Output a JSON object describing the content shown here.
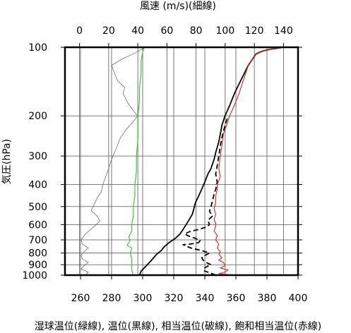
{
  "chart_data": {
    "type": "line",
    "title_top": "風速 (m/s)(細線)",
    "ylabel": "気圧(hPa)",
    "xlabel_bottom": "湿球温位(緑線), 温位(黒線), 相当温位(破線), 飽和相当温位(赤線)",
    "y_scale": "log",
    "ylim": [
      1000,
      100
    ],
    "y_ticks": [
      100,
      200,
      300,
      400,
      500,
      600,
      700,
      800,
      900,
      1000
    ],
    "top_axis": {
      "range": [
        -10,
        150
      ],
      "ticks": [
        0,
        20,
        40,
        60,
        80,
        100,
        120,
        140
      ]
    },
    "bottom_axis": {
      "range": [
        250,
        400
      ],
      "ticks": [
        260,
        280,
        300,
        320,
        340,
        360,
        380,
        400
      ]
    },
    "colors": {
      "wind": "#707070",
      "wet_bulb": "#22cc22",
      "potential": "#000000",
      "equivalent": "#000000",
      "saturated": "#dd2222"
    },
    "series": [
      {
        "key": "wind",
        "axis": "top",
        "style": "thin",
        "points": [
          [
            4,
            1000
          ],
          [
            6,
            970
          ],
          [
            1,
            940
          ],
          [
            3,
            910
          ],
          [
            6,
            880
          ],
          [
            2,
            850
          ],
          [
            1,
            820
          ],
          [
            3,
            790
          ],
          [
            6,
            760
          ],
          [
            2,
            730
          ],
          [
            1,
            700
          ],
          [
            4,
            660
          ],
          [
            9,
            620
          ],
          [
            14,
            580
          ],
          [
            12,
            550
          ],
          [
            8,
            520
          ],
          [
            10,
            490
          ],
          [
            12,
            460
          ],
          [
            15,
            430
          ],
          [
            16,
            400
          ],
          [
            18,
            370
          ],
          [
            20,
            340
          ],
          [
            22,
            310
          ],
          [
            25,
            280
          ],
          [
            28,
            250
          ],
          [
            32,
            230
          ],
          [
            36,
            215
          ],
          [
            40,
            200
          ],
          [
            37,
            190
          ],
          [
            33,
            175
          ],
          [
            30,
            160
          ],
          [
            31,
            150
          ],
          [
            26,
            140
          ],
          [
            24,
            130
          ],
          [
            22,
            120
          ],
          [
            30,
            112
          ],
          [
            38,
            106
          ],
          [
            45,
            100
          ]
        ]
      },
      {
        "key": "wet_bulb",
        "axis": "bottom",
        "style": "solid",
        "points": [
          [
            294,
            1000
          ],
          [
            293,
            950
          ],
          [
            293,
            900
          ],
          [
            293,
            850
          ],
          [
            292,
            800
          ],
          [
            293,
            760
          ],
          [
            290,
            740
          ],
          [
            292,
            700
          ],
          [
            291,
            680
          ],
          [
            293,
            640
          ],
          [
            293,
            600
          ],
          [
            294,
            550
          ],
          [
            294,
            500
          ],
          [
            295,
            450
          ],
          [
            295,
            400
          ],
          [
            296,
            350
          ],
          [
            296,
            300
          ],
          [
            297,
            250
          ],
          [
            297,
            200
          ],
          [
            298,
            170
          ],
          [
            298,
            150
          ],
          [
            299,
            130
          ],
          [
            299,
            115
          ],
          [
            300,
            105
          ],
          [
            301,
            100
          ]
        ]
      },
      {
        "key": "potential",
        "axis": "bottom",
        "style": "solid",
        "points": [
          [
            298,
            1000
          ],
          [
            299,
            960
          ],
          [
            301,
            930
          ],
          [
            303,
            900
          ],
          [
            305,
            870
          ],
          [
            307,
            840
          ],
          [
            309,
            810
          ],
          [
            312,
            780
          ],
          [
            314,
            750
          ],
          [
            317,
            720
          ],
          [
            321,
            690
          ],
          [
            324,
            660
          ],
          [
            326,
            630
          ],
          [
            328,
            600
          ],
          [
            330,
            570
          ],
          [
            332,
            540
          ],
          [
            333,
            510
          ],
          [
            334,
            480
          ],
          [
            336,
            450
          ],
          [
            338,
            420
          ],
          [
            340,
            390
          ],
          [
            342,
            360
          ],
          [
            344,
            340
          ],
          [
            346,
            310
          ],
          [
            347,
            290
          ],
          [
            349,
            260
          ],
          [
            350,
            240
          ],
          [
            351,
            220
          ],
          [
            353,
            200
          ],
          [
            356,
            180
          ],
          [
            359,
            160
          ],
          [
            362,
            145
          ],
          [
            365,
            132
          ],
          [
            368,
            120
          ],
          [
            371,
            112
          ],
          [
            373,
            107
          ],
          [
            377,
            104
          ],
          [
            382,
            102
          ],
          [
            387,
            101
          ],
          [
            390,
            100
          ]
        ]
      },
      {
        "key": "equivalent",
        "axis": "bottom",
        "style": "dashed",
        "points": [
          [
            347,
            1000
          ],
          [
            344,
            980
          ],
          [
            340,
            960
          ],
          [
            339,
            940
          ],
          [
            341,
            920
          ],
          [
            344,
            900
          ],
          [
            341,
            880
          ],
          [
            339,
            860
          ],
          [
            338,
            840
          ],
          [
            340,
            820
          ],
          [
            343,
            800
          ],
          [
            338,
            780
          ],
          [
            331,
            760
          ],
          [
            328,
            745
          ],
          [
            326,
            735
          ],
          [
            331,
            730
          ],
          [
            336,
            720
          ],
          [
            337,
            705
          ],
          [
            334,
            690
          ],
          [
            330,
            675
          ],
          [
            327,
            660
          ],
          [
            330,
            645
          ],
          [
            336,
            630
          ],
          [
            341,
            615
          ],
          [
            343,
            600
          ],
          [
            342,
            575
          ],
          [
            345,
            550
          ],
          [
            343,
            525
          ],
          [
            344,
            500
          ],
          [
            345,
            470
          ],
          [
            346,
            440
          ],
          [
            347,
            420
          ],
          [
            348,
            390
          ],
          [
            347,
            360
          ],
          [
            348,
            330
          ],
          [
            349,
            300
          ],
          [
            350,
            270
          ],
          [
            351,
            250
          ],
          [
            353,
            220
          ],
          [
            355,
            200
          ]
        ]
      },
      {
        "key": "saturated",
        "axis": "bottom",
        "style": "solid",
        "points": [
          [
            362,
            1000
          ],
          [
            355,
            995
          ],
          [
            349,
            985
          ],
          [
            353,
            970
          ],
          [
            355,
            950
          ],
          [
            350,
            930
          ],
          [
            353,
            910
          ],
          [
            352,
            880
          ],
          [
            349,
            860
          ],
          [
            351,
            840
          ],
          [
            349,
            810
          ],
          [
            350,
            790
          ],
          [
            348,
            760
          ],
          [
            349,
            730
          ],
          [
            347,
            700
          ],
          [
            348,
            670
          ],
          [
            346,
            640
          ],
          [
            347,
            610
          ],
          [
            347,
            590
          ],
          [
            346,
            570
          ],
          [
            347,
            540
          ],
          [
            346,
            510
          ],
          [
            347,
            480
          ],
          [
            347,
            450
          ],
          [
            348,
            420
          ],
          [
            348,
            400
          ],
          [
            350,
            370
          ],
          [
            349,
            340
          ],
          [
            350,
            300
          ],
          [
            351,
            270
          ],
          [
            352,
            240
          ],
          [
            354,
            220
          ],
          [
            356,
            200
          ],
          [
            359,
            180
          ],
          [
            362,
            160
          ],
          [
            364,
            145
          ],
          [
            366,
            132
          ],
          [
            368,
            120
          ],
          [
            371,
            112
          ],
          [
            373,
            107
          ],
          [
            377,
            104
          ],
          [
            382,
            102
          ],
          [
            387,
            101
          ],
          [
            390,
            100
          ]
        ]
      }
    ]
  }
}
